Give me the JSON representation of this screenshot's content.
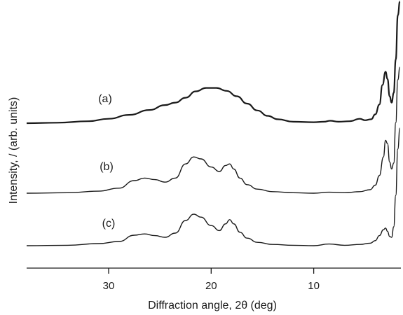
{
  "chart_data": {
    "type": "line",
    "xlabel": "Diffraction angle, 2θ (deg)",
    "ylabel": "Intensity, / (arb. units)",
    "xlim": [
      38,
      1.5
    ],
    "x_reversed": true,
    "xticks": [
      30,
      20,
      10
    ],
    "xtick_labels": [
      "30",
      "20",
      "10"
    ],
    "y_ticks_shown": false,
    "grid": false,
    "series": [
      {
        "name": "(a)",
        "x": [
          38,
          35,
          32,
          30,
          28,
          26,
          24.5,
          23.5,
          22.5,
          21.5,
          20.5,
          19.5,
          18.5,
          17.5,
          16.5,
          15.5,
          14.5,
          13.5,
          12,
          10,
          9,
          8.4,
          7.6,
          6.5,
          5.5,
          5.0,
          4.4,
          4.0,
          3.6,
          3.3,
          3.0,
          2.8,
          2.6,
          2.4,
          2.2,
          2.0,
          1.8,
          1.6
        ],
        "y": [
          0.0,
          0.01,
          0.04,
          0.09,
          0.17,
          0.27,
          0.37,
          0.42,
          0.52,
          0.65,
          0.72,
          0.72,
          0.66,
          0.55,
          0.4,
          0.26,
          0.15,
          0.08,
          0.03,
          0.02,
          0.03,
          0.05,
          0.03,
          0.04,
          0.09,
          0.06,
          0.08,
          0.18,
          0.38,
          0.78,
          1.05,
          0.9,
          0.55,
          0.42,
          0.62,
          1.3,
          2.2,
          2.5
        ]
      },
      {
        "name": "(b)",
        "x": [
          38,
          34,
          31,
          29,
          27.5,
          26.5,
          25.5,
          24.5,
          23.5,
          22.5,
          21.7,
          21.0,
          20.0,
          19.2,
          18.6,
          18.2,
          17.8,
          17.2,
          16.5,
          15.5,
          14,
          12,
          10,
          8.5,
          7,
          5.5,
          4.5,
          4.0,
          3.6,
          3.2,
          3.0,
          2.8,
          2.6,
          2.4,
          2.2,
          2.0,
          1.8,
          1.6
        ],
        "y": [
          0.0,
          0.01,
          0.04,
          0.1,
          0.25,
          0.3,
          0.27,
          0.22,
          0.3,
          0.58,
          0.72,
          0.68,
          0.52,
          0.43,
          0.55,
          0.58,
          0.48,
          0.3,
          0.17,
          0.08,
          0.03,
          0.01,
          0.0,
          0.02,
          0.01,
          0.03,
          0.07,
          0.16,
          0.35,
          0.72,
          1.05,
          0.98,
          0.62,
          0.48,
          0.6,
          1.4,
          2.25,
          2.5
        ]
      },
      {
        "name": "(c)",
        "x": [
          38,
          34,
          31,
          29,
          27.5,
          26.5,
          25.5,
          24.5,
          23.5,
          22.5,
          21.7,
          21.0,
          20.0,
          19.2,
          18.6,
          18.2,
          17.8,
          17.2,
          16.5,
          15.5,
          14,
          12,
          10,
          8.5,
          7,
          5.5,
          4.5,
          4.0,
          3.6,
          3.2,
          3.0,
          2.8,
          2.6,
          2.4,
          2.2,
          2.0,
          1.8,
          1.6
        ],
        "y": [
          0.0,
          0.01,
          0.05,
          0.1,
          0.25,
          0.28,
          0.24,
          0.2,
          0.3,
          0.6,
          0.75,
          0.68,
          0.48,
          0.36,
          0.52,
          0.62,
          0.52,
          0.32,
          0.18,
          0.08,
          0.03,
          0.01,
          0.0,
          0.04,
          0.01,
          0.03,
          0.06,
          0.12,
          0.24,
          0.38,
          0.42,
          0.34,
          0.22,
          0.2,
          0.45,
          1.2,
          2.3,
          2.8
        ]
      }
    ]
  }
}
